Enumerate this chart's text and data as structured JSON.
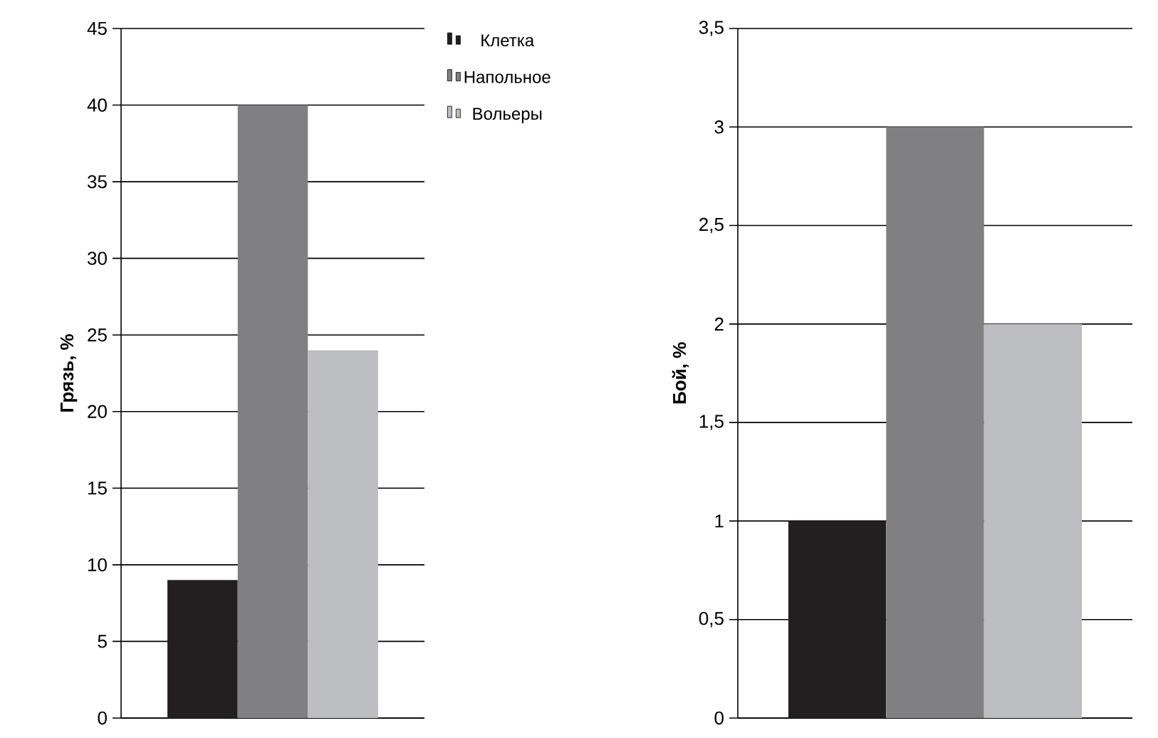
{
  "chart_data": [
    {
      "type": "bar",
      "ylabel": "Грязь, %",
      "categories": [
        null
      ],
      "series": [
        {
          "name": "Клетка",
          "color": "#231f20",
          "values": [
            9
          ]
        },
        {
          "name": "Напольное",
          "color": "#808083",
          "values": [
            40
          ]
        },
        {
          "name": "Вольеры",
          "color": "#bcbdc0",
          "values": [
            24
          ]
        }
      ],
      "ylim": [
        0,
        45
      ],
      "yticks": [
        0,
        5,
        10,
        15,
        20,
        25,
        30,
        35,
        40,
        45
      ],
      "grid": "y",
      "legend": "top right"
    },
    {
      "type": "bar",
      "ylabel": "Бой, %",
      "categories": [
        null
      ],
      "series": [
        {
          "color": "#231f20",
          "values": [
            1
          ]
        },
        {
          "color": "#808083",
          "values": [
            3
          ]
        },
        {
          "color": "#bcbdc0",
          "values": [
            2
          ]
        }
      ],
      "ylim": [
        0,
        3.5
      ],
      "yticks": [
        0,
        {
          "value": 0.5,
          "label": "0,5"
        },
        1,
        {
          "value": 1.5,
          "label": "1,5"
        },
        2,
        {
          "value": 2.5,
          "label": "2,5"
        },
        3,
        {
          "value": 3.5,
          "label": "3,5"
        }
      ],
      "grid": "y"
    }
  ]
}
